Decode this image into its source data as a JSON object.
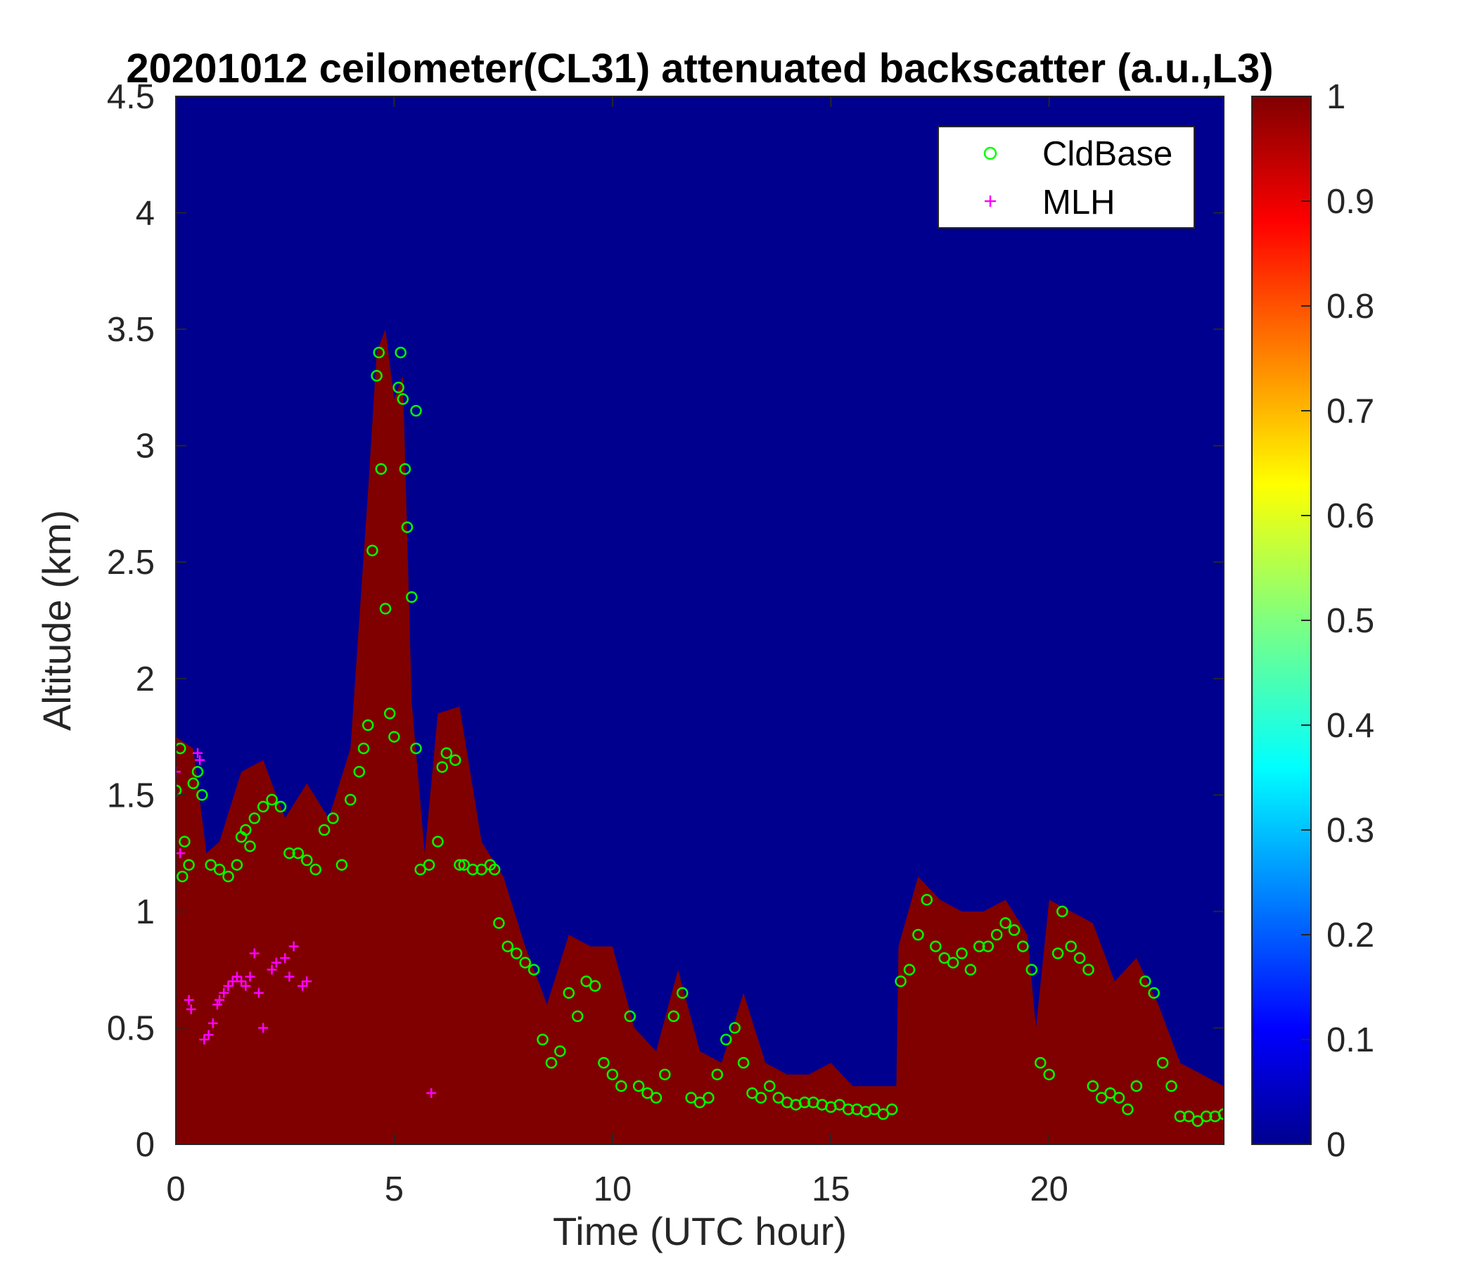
{
  "chart_data": {
    "type": "heatmap",
    "title": "20201012 ceilometer(CL31) attenuated backscatter (a.u.,L3)",
    "xlabel": "Time (UTC hour)",
    "ylabel": "Altitude (km)",
    "xlim": [
      0,
      24
    ],
    "ylim": [
      0,
      4.5
    ],
    "xticks": [
      0,
      5,
      10,
      15,
      20
    ],
    "xtick_labels": [
      "0",
      "5",
      "10",
      "15",
      "20"
    ],
    "yticks": [
      0,
      0.5,
      1,
      1.5,
      2,
      2.5,
      3,
      3.5,
      4,
      4.5
    ],
    "ytick_labels": [
      "0",
      "0.5",
      "1",
      "1.5",
      "2",
      "2.5",
      "3",
      "3.5",
      "4",
      "4.5"
    ],
    "colorbar": {
      "colormap": "jet",
      "range": [
        0,
        1
      ],
      "ticks": [
        0,
        0.1,
        0.2,
        0.3,
        0.4,
        0.5,
        0.6,
        0.7,
        0.8,
        0.9,
        1
      ],
      "tick_labels": [
        "0",
        "0.1",
        "0.2",
        "0.3",
        "0.4",
        "0.5",
        "0.6",
        "0.7",
        "0.8",
        "0.9",
        "1"
      ]
    },
    "background_value": 0,
    "saturated_layer_top_km": [
      [
        0.0,
        1.75
      ],
      [
        0.4,
        1.7
      ],
      [
        0.7,
        1.25
      ],
      [
        1.0,
        1.3
      ],
      [
        1.5,
        1.6
      ],
      [
        2.0,
        1.65
      ],
      [
        2.5,
        1.4
      ],
      [
        3.0,
        1.55
      ],
      [
        3.5,
        1.4
      ],
      [
        4.0,
        1.7
      ],
      [
        4.4,
        2.8
      ],
      [
        4.6,
        3.4
      ],
      [
        4.8,
        3.5
      ],
      [
        5.0,
        3.2
      ],
      [
        5.2,
        3.3
      ],
      [
        5.4,
        1.9
      ],
      [
        5.7,
        1.25
      ],
      [
        6.0,
        1.85
      ],
      [
        6.5,
        1.88
      ],
      [
        7.0,
        1.3
      ],
      [
        7.5,
        1.15
      ],
      [
        8.0,
        0.85
      ],
      [
        8.5,
        0.6
      ],
      [
        9.0,
        0.9
      ],
      [
        9.5,
        0.85
      ],
      [
        10.0,
        0.85
      ],
      [
        10.5,
        0.5
      ],
      [
        11.0,
        0.4
      ],
      [
        11.5,
        0.75
      ],
      [
        12.0,
        0.4
      ],
      [
        12.5,
        0.35
      ],
      [
        13.0,
        0.65
      ],
      [
        13.5,
        0.35
      ],
      [
        14.0,
        0.3
      ],
      [
        14.5,
        0.3
      ],
      [
        15.0,
        0.35
      ],
      [
        15.5,
        0.25
      ],
      [
        16.0,
        0.25
      ],
      [
        16.5,
        0.25
      ],
      [
        16.55,
        0.85
      ],
      [
        17.0,
        1.15
      ],
      [
        17.5,
        1.05
      ],
      [
        18.0,
        1.0
      ],
      [
        18.5,
        1.0
      ],
      [
        19.0,
        1.05
      ],
      [
        19.5,
        0.9
      ],
      [
        19.7,
        0.5
      ],
      [
        20.0,
        1.05
      ],
      [
        20.5,
        1.0
      ],
      [
        21.0,
        0.95
      ],
      [
        21.5,
        0.7
      ],
      [
        22.0,
        0.8
      ],
      [
        22.5,
        0.6
      ],
      [
        23.0,
        0.35
      ],
      [
        23.5,
        0.3
      ],
      [
        24.0,
        0.25
      ]
    ],
    "series": [
      {
        "name": "CldBase",
        "marker": "circle",
        "color": "#00ff00",
        "points": [
          [
            0.0,
            1.52
          ],
          [
            0.1,
            1.7
          ],
          [
            0.15,
            1.15
          ],
          [
            0.2,
            1.3
          ],
          [
            0.3,
            1.2
          ],
          [
            0.4,
            1.55
          ],
          [
            0.5,
            1.6
          ],
          [
            0.6,
            1.5
          ],
          [
            0.8,
            1.2
          ],
          [
            1.0,
            1.18
          ],
          [
            1.2,
            1.15
          ],
          [
            1.4,
            1.2
          ],
          [
            1.5,
            1.32
          ],
          [
            1.6,
            1.35
          ],
          [
            1.7,
            1.28
          ],
          [
            1.8,
            1.4
          ],
          [
            2.0,
            1.45
          ],
          [
            2.2,
            1.48
          ],
          [
            2.4,
            1.45
          ],
          [
            2.6,
            1.25
          ],
          [
            2.8,
            1.25
          ],
          [
            3.0,
            1.22
          ],
          [
            3.2,
            1.18
          ],
          [
            3.4,
            1.35
          ],
          [
            3.6,
            1.4
          ],
          [
            3.8,
            1.2
          ],
          [
            4.0,
            1.48
          ],
          [
            4.2,
            1.6
          ],
          [
            4.3,
            1.7
          ],
          [
            4.4,
            1.8
          ],
          [
            4.5,
            2.55
          ],
          [
            4.6,
            3.3
          ],
          [
            4.65,
            3.4
          ],
          [
            4.7,
            2.9
          ],
          [
            4.8,
            2.3
          ],
          [
            4.9,
            1.85
          ],
          [
            5.0,
            1.75
          ],
          [
            5.1,
            3.25
          ],
          [
            5.15,
            3.4
          ],
          [
            5.2,
            3.2
          ],
          [
            5.25,
            2.9
          ],
          [
            5.3,
            2.65
          ],
          [
            5.4,
            2.35
          ],
          [
            5.5,
            3.15
          ],
          [
            5.5,
            1.7
          ],
          [
            5.6,
            1.18
          ],
          [
            5.8,
            1.2
          ],
          [
            6.0,
            1.3
          ],
          [
            6.1,
            1.62
          ],
          [
            6.2,
            1.68
          ],
          [
            6.4,
            1.65
          ],
          [
            6.5,
            1.2
          ],
          [
            6.6,
            1.2
          ],
          [
            6.8,
            1.18
          ],
          [
            7.0,
            1.18
          ],
          [
            7.2,
            1.2
          ],
          [
            7.3,
            1.18
          ],
          [
            7.4,
            0.95
          ],
          [
            7.6,
            0.85
          ],
          [
            7.8,
            0.82
          ],
          [
            8.0,
            0.78
          ],
          [
            8.2,
            0.75
          ],
          [
            8.4,
            0.45
          ],
          [
            8.6,
            0.35
          ],
          [
            8.8,
            0.4
          ],
          [
            9.0,
            0.65
          ],
          [
            9.2,
            0.55
          ],
          [
            9.4,
            0.7
          ],
          [
            9.6,
            0.68
          ],
          [
            9.8,
            0.35
          ],
          [
            10.0,
            0.3
          ],
          [
            10.2,
            0.25
          ],
          [
            10.4,
            0.55
          ],
          [
            10.6,
            0.25
          ],
          [
            10.8,
            0.22
          ],
          [
            11.0,
            0.2
          ],
          [
            11.2,
            0.3
          ],
          [
            11.4,
            0.55
          ],
          [
            11.6,
            0.65
          ],
          [
            11.8,
            0.2
          ],
          [
            12.0,
            0.18
          ],
          [
            12.2,
            0.2
          ],
          [
            12.4,
            0.3
          ],
          [
            12.6,
            0.45
          ],
          [
            12.8,
            0.5
          ],
          [
            13.0,
            0.35
          ],
          [
            13.2,
            0.22
          ],
          [
            13.4,
            0.2
          ],
          [
            13.6,
            0.25
          ],
          [
            13.8,
            0.2
          ],
          [
            14.0,
            0.18
          ],
          [
            14.2,
            0.17
          ],
          [
            14.4,
            0.18
          ],
          [
            14.6,
            0.18
          ],
          [
            14.8,
            0.17
          ],
          [
            15.0,
            0.16
          ],
          [
            15.2,
            0.17
          ],
          [
            15.4,
            0.15
          ],
          [
            15.6,
            0.15
          ],
          [
            15.8,
            0.14
          ],
          [
            16.0,
            0.15
          ],
          [
            16.2,
            0.13
          ],
          [
            16.4,
            0.15
          ],
          [
            16.6,
            0.7
          ],
          [
            16.8,
            0.75
          ],
          [
            17.0,
            0.9
          ],
          [
            17.2,
            1.05
          ],
          [
            17.4,
            0.85
          ],
          [
            17.6,
            0.8
          ],
          [
            17.8,
            0.78
          ],
          [
            18.0,
            0.82
          ],
          [
            18.2,
            0.75
          ],
          [
            18.4,
            0.85
          ],
          [
            18.6,
            0.85
          ],
          [
            18.8,
            0.9
          ],
          [
            19.0,
            0.95
          ],
          [
            19.2,
            0.92
          ],
          [
            19.4,
            0.85
          ],
          [
            19.6,
            0.75
          ],
          [
            19.8,
            0.35
          ],
          [
            20.0,
            0.3
          ],
          [
            20.2,
            0.82
          ],
          [
            20.3,
            1.0
          ],
          [
            20.5,
            0.85
          ],
          [
            20.7,
            0.8
          ],
          [
            20.9,
            0.75
          ],
          [
            21.0,
            0.25
          ],
          [
            21.2,
            0.2
          ],
          [
            21.4,
            0.22
          ],
          [
            21.6,
            0.2
          ],
          [
            21.8,
            0.15
          ],
          [
            22.0,
            0.25
          ],
          [
            22.2,
            0.7
          ],
          [
            22.4,
            0.65
          ],
          [
            22.6,
            0.35
          ],
          [
            22.8,
            0.25
          ],
          [
            23.0,
            0.12
          ],
          [
            23.2,
            0.12
          ],
          [
            23.4,
            0.1
          ],
          [
            23.6,
            0.12
          ],
          [
            23.8,
            0.12
          ],
          [
            24.0,
            0.13
          ]
        ]
      },
      {
        "name": "MLH",
        "marker": "plus",
        "color": "#ff00ff",
        "points": [
          [
            0.0,
            1.6
          ],
          [
            0.1,
            1.25
          ],
          [
            0.3,
            0.62
          ],
          [
            0.35,
            0.58
          ],
          [
            0.5,
            1.68
          ],
          [
            0.55,
            1.65
          ],
          [
            0.65,
            0.45
          ],
          [
            0.75,
            0.47
          ],
          [
            0.85,
            0.52
          ],
          [
            0.95,
            0.6
          ],
          [
            1.0,
            0.62
          ],
          [
            1.1,
            0.65
          ],
          [
            1.2,
            0.68
          ],
          [
            1.3,
            0.7
          ],
          [
            1.4,
            0.72
          ],
          [
            1.5,
            0.7
          ],
          [
            1.6,
            0.68
          ],
          [
            1.7,
            0.72
          ],
          [
            1.8,
            0.82
          ],
          [
            1.9,
            0.65
          ],
          [
            2.0,
            0.5
          ],
          [
            2.2,
            0.75
          ],
          [
            2.3,
            0.78
          ],
          [
            2.5,
            0.8
          ],
          [
            2.6,
            0.72
          ],
          [
            2.7,
            0.85
          ],
          [
            2.9,
            0.68
          ],
          [
            3.0,
            0.7
          ],
          [
            5.85,
            0.22
          ]
        ]
      }
    ],
    "legend": {
      "location": "top-right",
      "entries": [
        "CldBase",
        "MLH"
      ]
    }
  }
}
